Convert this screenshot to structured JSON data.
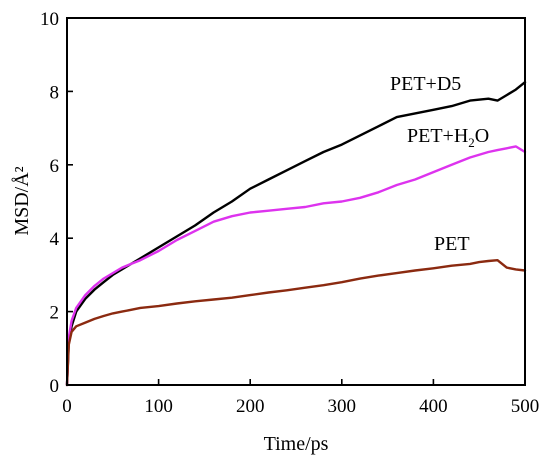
{
  "chart_data": {
    "type": "line",
    "title": "",
    "xlabel": "Time/ps",
    "ylabel": "MSD/Å²",
    "xlim": [
      0,
      500
    ],
    "ylim": [
      0,
      10
    ],
    "xticks": [
      0,
      100,
      200,
      300,
      400,
      500
    ],
    "yticks": [
      0,
      2,
      4,
      6,
      8,
      10
    ],
    "grid": false,
    "series": [
      {
        "label_main": "PET+D5",
        "label_sub": "",
        "label_tail": "",
        "color": "#000000",
        "x": [
          0,
          2,
          5,
          10,
          20,
          30,
          40,
          50,
          60,
          70,
          80,
          100,
          120,
          140,
          160,
          180,
          200,
          220,
          240,
          260,
          280,
          300,
          320,
          340,
          360,
          380,
          400,
          420,
          440,
          460,
          470,
          480,
          490,
          500
        ],
        "y": [
          0,
          1.2,
          1.6,
          2.0,
          2.35,
          2.6,
          2.8,
          3.0,
          3.15,
          3.3,
          3.45,
          3.75,
          4.05,
          4.35,
          4.7,
          5.0,
          5.35,
          5.6,
          5.85,
          6.1,
          6.35,
          6.55,
          6.8,
          7.05,
          7.3,
          7.4,
          7.5,
          7.6,
          7.75,
          7.8,
          7.75,
          7.9,
          8.05,
          8.25
        ]
      },
      {
        "label_main": "PET+H",
        "label_sub": "2",
        "label_tail": "O",
        "color": "#dd33ee",
        "x": [
          0,
          2,
          5,
          10,
          20,
          30,
          40,
          50,
          60,
          70,
          80,
          100,
          120,
          140,
          160,
          180,
          200,
          220,
          240,
          260,
          280,
          300,
          320,
          340,
          360,
          380,
          400,
          420,
          440,
          460,
          470,
          480,
          490,
          500
        ],
        "y": [
          0,
          1.3,
          1.75,
          2.1,
          2.45,
          2.7,
          2.9,
          3.05,
          3.2,
          3.3,
          3.4,
          3.65,
          3.95,
          4.2,
          4.45,
          4.6,
          4.7,
          4.75,
          4.8,
          4.85,
          4.95,
          5.0,
          5.1,
          5.25,
          5.45,
          5.6,
          5.8,
          6.0,
          6.2,
          6.35,
          6.4,
          6.45,
          6.5,
          6.35
        ]
      },
      {
        "label_main": "PET",
        "label_sub": "",
        "label_tail": "",
        "color": "#8b2a10",
        "x": [
          0,
          2,
          5,
          10,
          20,
          30,
          40,
          50,
          60,
          70,
          80,
          100,
          120,
          140,
          160,
          180,
          200,
          220,
          240,
          260,
          280,
          300,
          320,
          340,
          360,
          380,
          400,
          420,
          440,
          450,
          460,
          470,
          480,
          490,
          500
        ],
        "y": [
          0,
          1.1,
          1.45,
          1.6,
          1.7,
          1.8,
          1.88,
          1.95,
          2.0,
          2.05,
          2.1,
          2.15,
          2.22,
          2.28,
          2.33,
          2.38,
          2.45,
          2.52,
          2.58,
          2.65,
          2.72,
          2.8,
          2.9,
          2.98,
          3.05,
          3.12,
          3.18,
          3.25,
          3.3,
          3.35,
          3.38,
          3.4,
          3.2,
          3.15,
          3.12
        ]
      }
    ]
  }
}
